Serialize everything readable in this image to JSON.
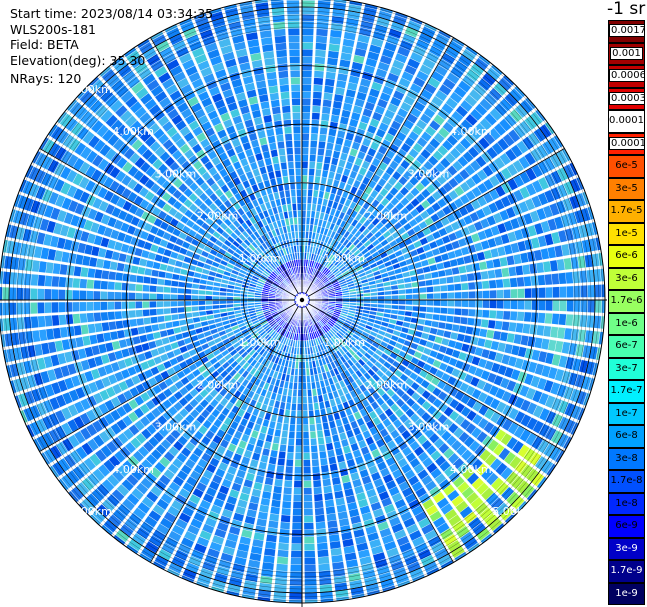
{
  "info": {
    "start_time": "Start time: 2023/08/14 03:34:35",
    "device": "WLS200s-181",
    "field": "Field: BETA",
    "elevation": "Elevation(deg): 35.30",
    "nrays": "NRays: 120"
  },
  "unit_title": "-1 sr",
  "range_labels": [
    "1.00km",
    "2.00km",
    "3.00km",
    "4.00km",
    "5.00km"
  ],
  "legend": [
    {
      "label": "0.0017",
      "color": "#800000",
      "boxed": true
    },
    {
      "label": "0.001",
      "color": "#a00000",
      "boxed": true
    },
    {
      "label": "0.0006",
      "color": "#c00000",
      "boxed": true
    },
    {
      "label": "0.0003",
      "color": "#e00000",
      "boxed": true
    },
    {
      "label": "0.00017",
      "color": "#ffffff",
      "boxed": false
    },
    {
      "label": "0.0001",
      "color": "#ff2000",
      "boxed": true
    },
    {
      "label": "6e-5",
      "color": "#ff5000",
      "boxed": false
    },
    {
      "label": "3e-5",
      "color": "#ff8000",
      "boxed": false
    },
    {
      "label": "1.7e-5",
      "color": "#ffb000",
      "boxed": false
    },
    {
      "label": "1e-5",
      "color": "#ffe000",
      "boxed": false
    },
    {
      "label": "6e-6",
      "color": "#e8ff10",
      "boxed": false
    },
    {
      "label": "3e-6",
      "color": "#c0ff38",
      "boxed": false
    },
    {
      "label": "1.7e-6",
      "color": "#98ff60",
      "boxed": false
    },
    {
      "label": "1e-6",
      "color": "#70ff88",
      "boxed": false
    },
    {
      "label": "6e-7",
      "color": "#48ffb0",
      "boxed": false
    },
    {
      "label": "3e-7",
      "color": "#20ffd8",
      "boxed": false
    },
    {
      "label": "1.7e-7",
      "color": "#00f0ff",
      "boxed": false
    },
    {
      "label": "1e-7",
      "color": "#00c8ff",
      "boxed": false
    },
    {
      "label": "6e-8",
      "color": "#00a0ff",
      "boxed": false
    },
    {
      "label": "3e-8",
      "color": "#0078ff",
      "boxed": false
    },
    {
      "label": "1.7e-8",
      "color": "#0050ff",
      "boxed": false
    },
    {
      "label": "1e-8",
      "color": "#0028ff",
      "boxed": false
    },
    {
      "label": "6e-9",
      "color": "#0000ff",
      "boxed": false
    },
    {
      "label": "3e-9",
      "color": "#0000c8",
      "boxed": false
    },
    {
      "label": "1.7e-9",
      "color": "#00008c",
      "boxed": false
    },
    {
      "label": "1e-9",
      "color": "#000060",
      "boxed": false
    }
  ],
  "colors": {
    "background_field": "#1e90ff",
    "ring_line": "#000000",
    "gap_line": "#ffffff",
    "label_color": "#ffffff",
    "plume_color": "#c8ff30"
  }
}
